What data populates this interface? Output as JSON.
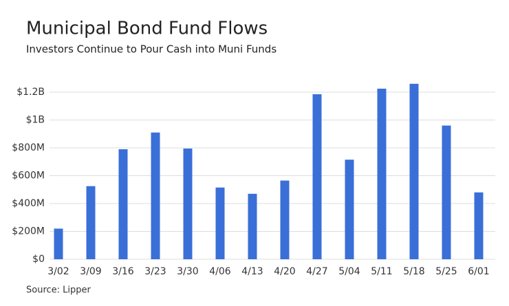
{
  "chart_data": {
    "type": "bar",
    "title": "Municipal Bond Fund Flows",
    "subtitle": "Investors Continue to Pour Cash into Muni Funds",
    "source": "Source: Lipper",
    "categories": [
      "3/02",
      "3/09",
      "3/16",
      "3/23",
      "3/30",
      "4/06",
      "4/13",
      "4/20",
      "4/27",
      "5/04",
      "5/11",
      "5/18",
      "5/25",
      "6/01"
    ],
    "values": [
      220000000,
      525000000,
      790000000,
      910000000,
      795000000,
      515000000,
      470000000,
      565000000,
      1185000000,
      715000000,
      1225000000,
      1260000000,
      960000000,
      480000000
    ],
    "color": "#3a6fd8",
    "ylim": [
      0,
      1300000000
    ],
    "yticks": [
      {
        "value": 0,
        "label": "$0"
      },
      {
        "value": 200000000,
        "label": "$200M"
      },
      {
        "value": 400000000,
        "label": "$400M"
      },
      {
        "value": 600000000,
        "label": "$600M"
      },
      {
        "value": 800000000,
        "label": "$800M"
      },
      {
        "value": 1000000000,
        "label": "$1B"
      },
      {
        "value": 1200000000,
        "label": "$1.2B"
      }
    ],
    "grid": true
  }
}
